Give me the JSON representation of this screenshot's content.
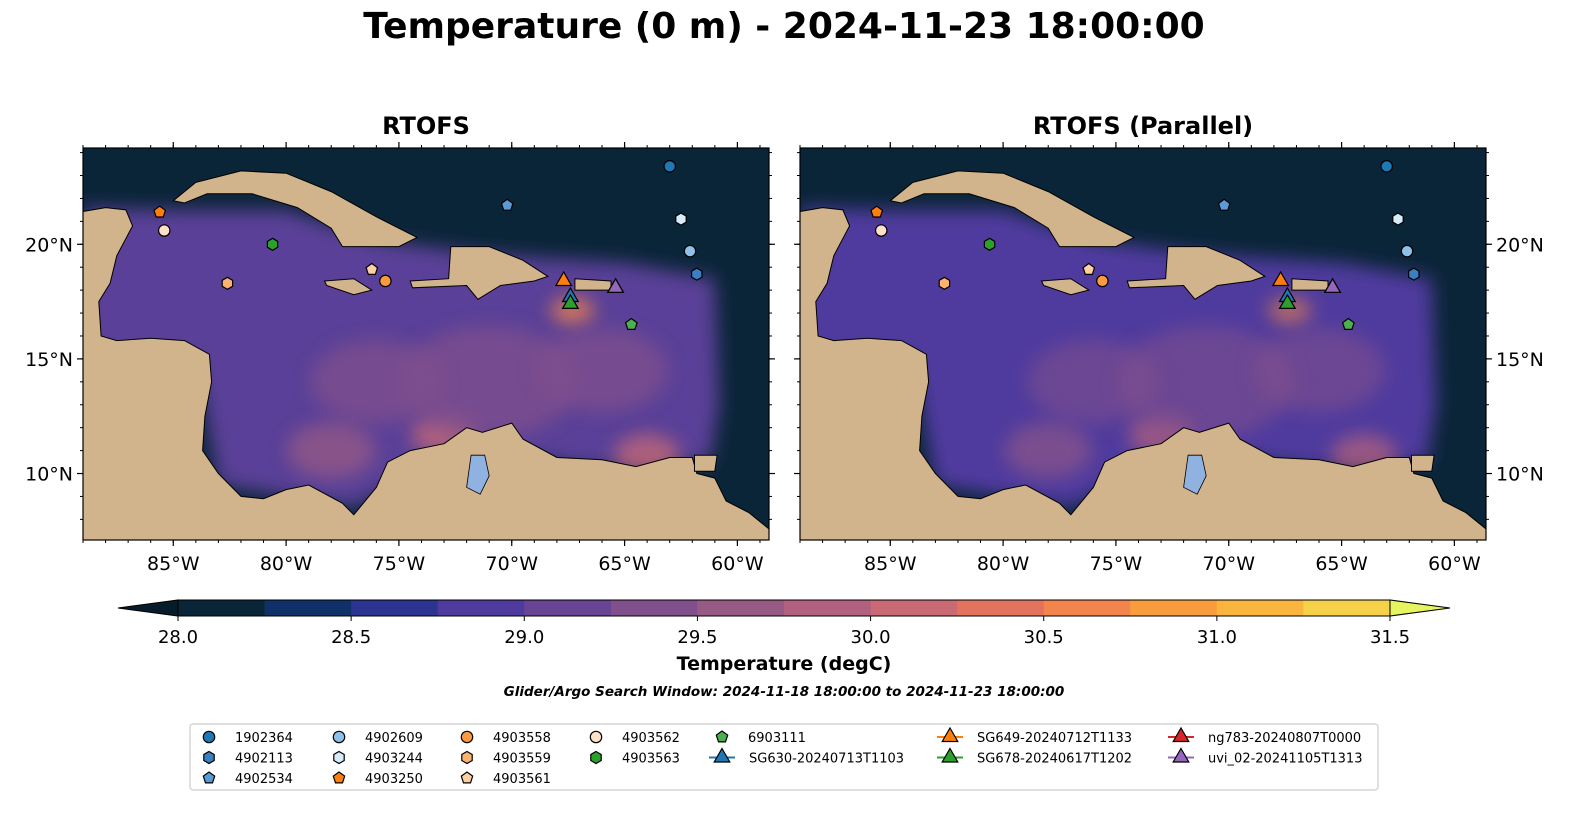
{
  "figure_title": "Temperature (0 m) - 2024-11-23 18:00:00",
  "panels": [
    {
      "title": "RTOFS"
    },
    {
      "title": "RTOFS (Parallel)"
    }
  ],
  "colorbar": {
    "label": "Temperature (degC)",
    "min": 28.0,
    "max": 31.5,
    "step": 0.25,
    "ticks": [
      "28.0",
      "28.5",
      "29.0",
      "29.5",
      "30.0",
      "30.5",
      "31.0",
      "31.5"
    ],
    "colors": [
      "#0a2538",
      "#10306a",
      "#2c3491",
      "#4f3a9e",
      "#674594",
      "#80508d",
      "#975a85",
      "#b16080",
      "#c96a75",
      "#e2735f",
      "#f2844c",
      "#f99c3d",
      "#f9b53e",
      "#f6d14a"
    ],
    "under_color": "#061c2a",
    "over_color": "#e6f55f"
  },
  "search_window": "Glider/Argo Search Window: 2024-11-18 18:00:00 to 2024-11-23 18:00:00",
  "chart_data": {
    "type": "map",
    "lon_range": [
      -89.0,
      -58.6
    ],
    "lat_range": [
      7.1,
      24.2
    ],
    "lon_ticks": [
      "85°W",
      "80°W",
      "75°W",
      "70°W",
      "65°W",
      "60°W"
    ],
    "lon_tick_values": [
      -85,
      -80,
      -75,
      -70,
      -65,
      -60
    ],
    "lat_ticks": [
      "10°N",
      "15°N",
      "20°N"
    ],
    "lat_tick_values": [
      10,
      15,
      20
    ],
    "markers": [
      {
        "id": "1902364",
        "shape": "circle",
        "color": "#1f77b4",
        "lon": -63.0,
        "lat": 23.4
      },
      {
        "id": "4902113",
        "shape": "hexagon",
        "color": "#3a7fc1",
        "lon": -61.8,
        "lat": 18.7
      },
      {
        "id": "4902534",
        "shape": "pentagon",
        "color": "#5a9ad6",
        "lon": -70.2,
        "lat": 21.7
      },
      {
        "id": "4902609",
        "shape": "circle",
        "color": "#8ec1ea",
        "lon": -62.1,
        "lat": 19.7
      },
      {
        "id": "4903244",
        "shape": "hexagon",
        "color": "#d5ecfb",
        "lon": -62.5,
        "lat": 21.1
      },
      {
        "id": "4903250",
        "shape": "pentagon",
        "color": "#ff7f0e",
        "lon": -85.6,
        "lat": 21.4
      },
      {
        "id": "4903558",
        "shape": "circle",
        "color": "#fd9a3f",
        "lon": -75.6,
        "lat": 18.4
      },
      {
        "id": "4903559",
        "shape": "hexagon",
        "color": "#fdb36f",
        "lon": -82.6,
        "lat": 18.3
      },
      {
        "id": "4903561",
        "shape": "pentagon",
        "color": "#fdd0a2",
        "lon": -76.2,
        "lat": 18.9
      },
      {
        "id": "4903562",
        "shape": "circle",
        "color": "#fde0c8",
        "lon": -85.4,
        "lat": 20.6
      },
      {
        "id": "4903563",
        "shape": "hexagon",
        "color": "#2ca02c",
        "lon": -80.6,
        "lat": 20.0
      },
      {
        "id": "6903111",
        "shape": "pentagon",
        "color": "#4caf50",
        "lon": -64.7,
        "lat": 16.5
      },
      {
        "id": "SG630-20240713T1103",
        "shape": "triangle",
        "color": "#1f77b4",
        "lon": -67.4,
        "lat": 17.7,
        "line": true
      },
      {
        "id": "SG649-20240712T1133",
        "shape": "triangle",
        "color": "#ff7f0e",
        "lon": -67.7,
        "lat": 18.4,
        "line": true
      },
      {
        "id": "SG678-20240617T1202",
        "shape": "triangle",
        "color": "#2ca02c",
        "lon": -67.4,
        "lat": 17.4,
        "line": true
      },
      {
        "id": "ng783-20240807T0000",
        "shape": "triangle",
        "color": "#d62728",
        "lon": -65.4,
        "lat": 18.1,
        "line": true
      },
      {
        "id": "uvi_02-20241105T1313",
        "shape": "triangle",
        "color": "#9467bd",
        "lon": -65.4,
        "lat": 18.1,
        "line": true
      }
    ]
  }
}
